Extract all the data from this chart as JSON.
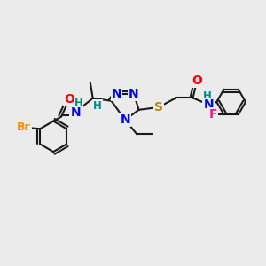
{
  "bg_color": "#EBEBEB",
  "atom_colors": {
    "N": "#0000FF",
    "O": "#FF0000",
    "S": "#B8860B",
    "Br": "#FF8C00",
    "F": "#FF1493",
    "H": "#008B8B",
    "C": "#1a1a1a"
  },
  "bond_color": "#1a1a1a",
  "bond_width": 1.5,
  "font_size_atom": 10,
  "font_size_small": 8.5
}
